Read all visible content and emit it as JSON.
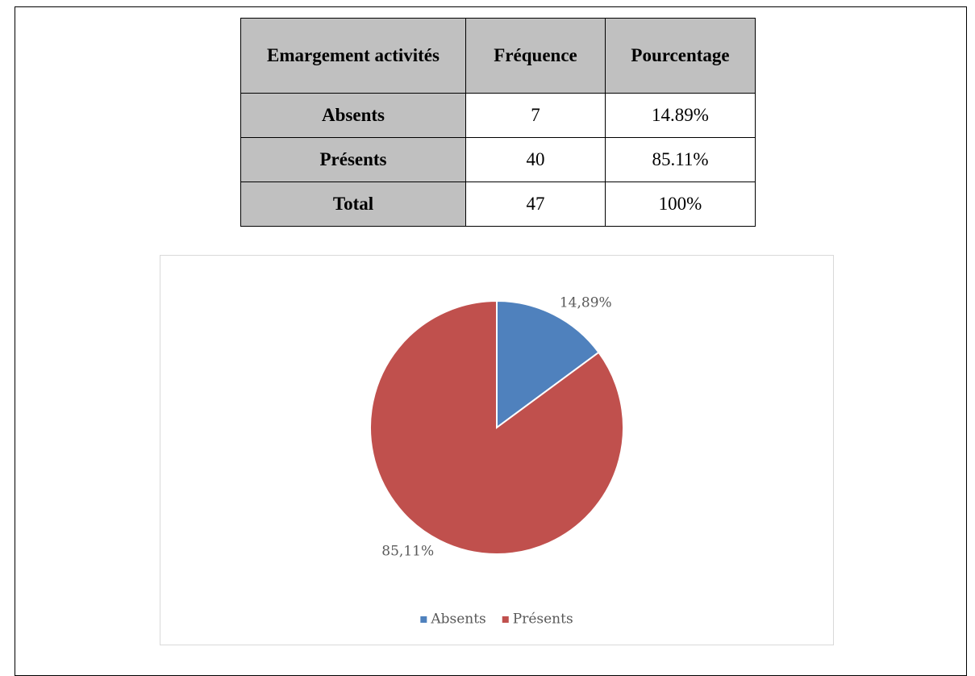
{
  "table": {
    "header": [
      "Emargement activités",
      "Fréquence",
      "Pourcentage"
    ],
    "rows": [
      [
        "Absents",
        "7",
        "14.89%"
      ],
      [
        "Présents",
        "40",
        "85.11%"
      ],
      [
        "Total",
        "47",
        "100%"
      ]
    ]
  },
  "chart_data": {
    "type": "pie",
    "categories": [
      "Absents",
      "Présents"
    ],
    "values": [
      14.89,
      85.11
    ],
    "value_labels": [
      "14,89%",
      "85,11%"
    ],
    "colors": [
      "#4f81bd",
      "#c0504d"
    ],
    "legend": "bottom"
  }
}
